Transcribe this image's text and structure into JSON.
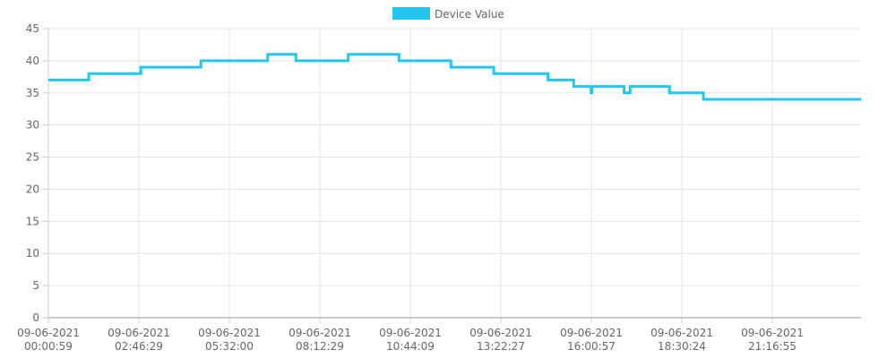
{
  "chart_data": {
    "type": "line",
    "title": "",
    "xlabel": "",
    "ylabel": "",
    "legend_position": "top-center",
    "grid": true,
    "ylim": [
      0,
      45
    ],
    "y_ticks": [
      0,
      5,
      10,
      15,
      20,
      25,
      30,
      35,
      40,
      45
    ],
    "x_ticks": [
      {
        "date": "09-06-2021",
        "time": "00:00:59"
      },
      {
        "date": "09-06-2021",
        "time": "02:46:29"
      },
      {
        "date": "09-06-2021",
        "time": "05:32:00"
      },
      {
        "date": "09-06-2021",
        "time": "08:12:29"
      },
      {
        "date": "09-06-2021",
        "time": "10:44:09"
      },
      {
        "date": "09-06-2021",
        "time": "13:22:27"
      },
      {
        "date": "09-06-2021",
        "time": "16:00:57"
      },
      {
        "date": "09-06-2021",
        "time": "18:30:24"
      },
      {
        "date": "09-06-2021",
        "time": "21:16:55"
      }
    ],
    "series": [
      {
        "name": "Device Value",
        "color": "#22c7ef",
        "step": true,
        "points": [
          [
            "09-06-2021 00:00:59",
            37
          ],
          [
            "09-06-2021 01:15:00",
            38
          ],
          [
            "09-06-2021 02:50:00",
            39
          ],
          [
            "09-06-2021 04:40:00",
            40
          ],
          [
            "09-06-2021 06:40:00",
            41
          ],
          [
            "09-06-2021 07:30:00",
            40
          ],
          [
            "09-06-2021 09:00:00",
            41
          ],
          [
            "09-06-2021 10:25:00",
            40
          ],
          [
            "09-06-2021 11:55:00",
            39
          ],
          [
            "09-06-2021 13:10:00",
            38
          ],
          [
            "09-06-2021 14:45:00",
            37
          ],
          [
            "09-06-2021 15:30:00",
            36
          ],
          [
            "09-06-2021 16:00:30",
            35
          ],
          [
            "09-06-2021 16:02:00",
            36
          ],
          [
            "09-06-2021 16:55:00",
            35
          ],
          [
            "09-06-2021 17:05:00",
            36
          ],
          [
            "09-06-2021 18:10:00",
            35
          ],
          [
            "09-06-2021 19:10:00",
            34
          ],
          [
            "09-06-2021 23:59:00",
            34
          ]
        ]
      }
    ]
  }
}
